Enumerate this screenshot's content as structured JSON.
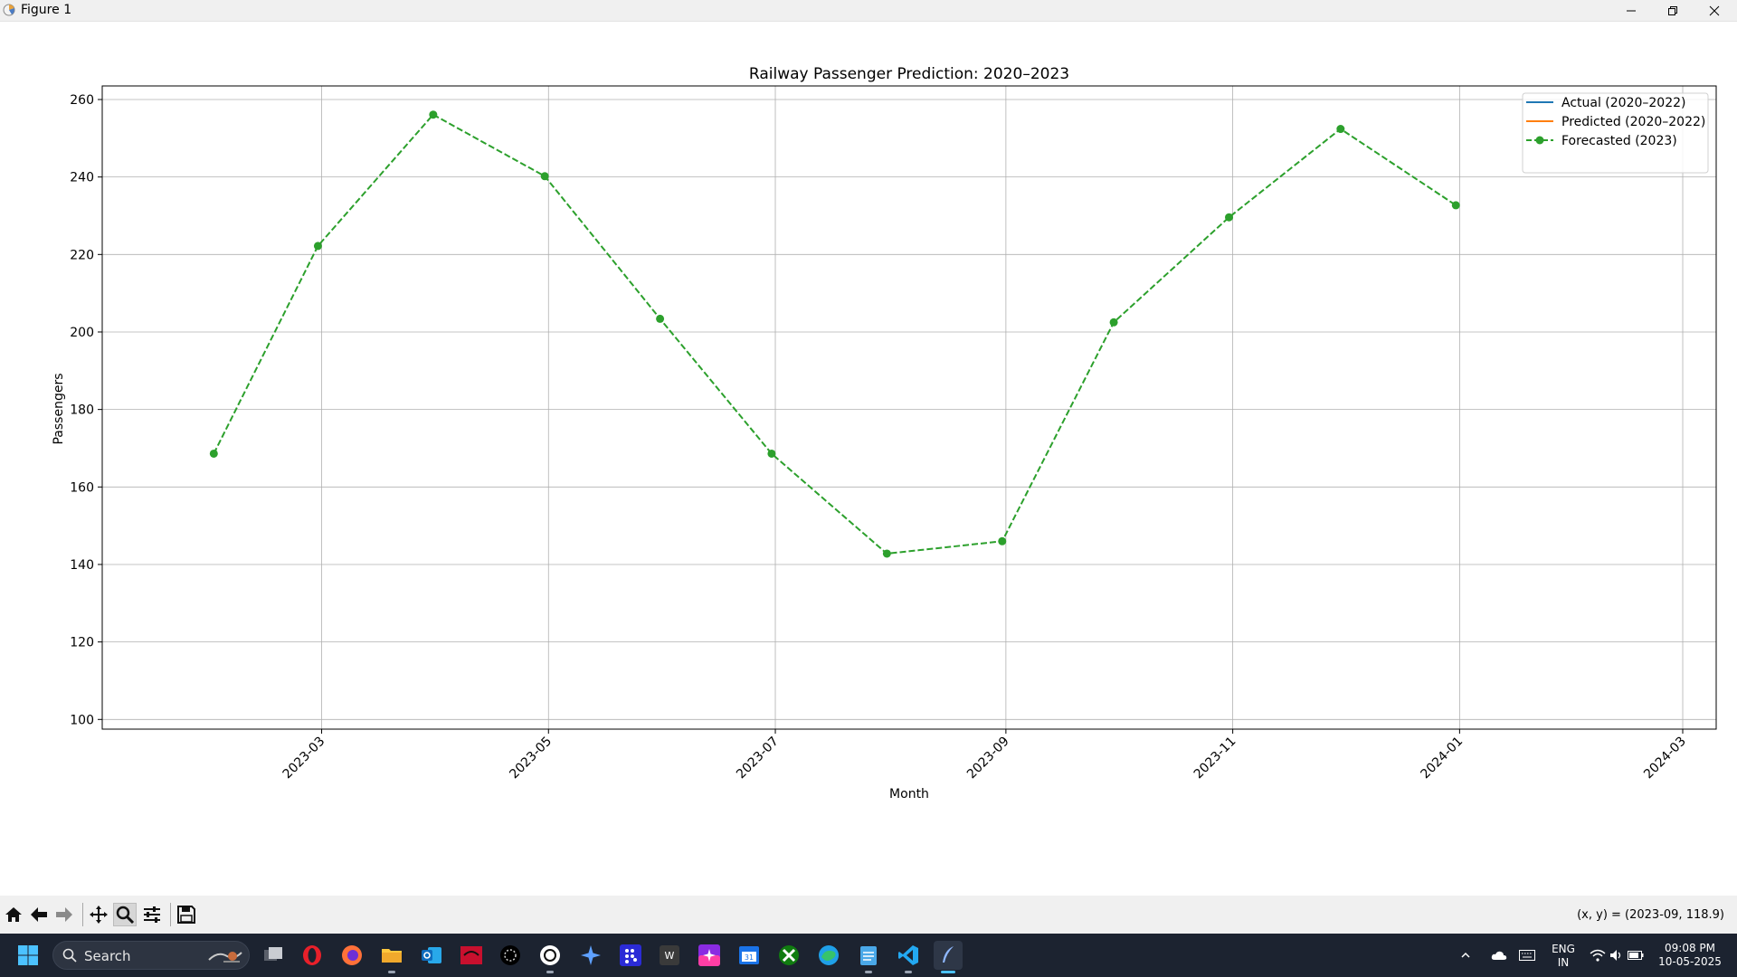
{
  "window": {
    "title": "Figure 1"
  },
  "chart_data": {
    "type": "line",
    "title": "Railway Passenger Prediction: 2020–2023",
    "xlabel": "Month",
    "ylabel": "Passengers",
    "ylim": [
      97.5,
      263.5
    ],
    "xlim": [
      "2023-01-01",
      "2024-03-10"
    ],
    "y_ticks": [
      100,
      120,
      140,
      160,
      180,
      200,
      220,
      240,
      260
    ],
    "x_ticks": [
      {
        "date": "2023-03-01",
        "label": "2023-03"
      },
      {
        "date": "2023-05-01",
        "label": "2023-05"
      },
      {
        "date": "2023-07-01",
        "label": "2023-07"
      },
      {
        "date": "2023-09-01",
        "label": "2023-09"
      },
      {
        "date": "2023-11-01",
        "label": "2023-11"
      },
      {
        "date": "2024-01-01",
        "label": "2024-01"
      },
      {
        "date": "2024-03-01",
        "label": "2024-03"
      }
    ],
    "grid": true,
    "legend_position": "upper right",
    "series": [
      {
        "name": "Actual (2020–2022)",
        "color": "#1f77b4",
        "style": "solid",
        "marker": "none",
        "x": [],
        "y": []
      },
      {
        "name": "Predicted (2020–2022)",
        "color": "#ff7f0e",
        "style": "solid",
        "marker": "none",
        "x": [],
        "y": []
      },
      {
        "name": "Forecasted (2023)",
        "color": "#2ca02c",
        "style": "dashed",
        "marker": "circle",
        "x": [
          "2023-01-31",
          "2023-02-28",
          "2023-03-31",
          "2023-04-30",
          "2023-05-31",
          "2023-06-30",
          "2023-07-31",
          "2023-08-31",
          "2023-09-30",
          "2023-10-31",
          "2023-11-30",
          "2023-12-31"
        ],
        "y": [
          168.6,
          222.2,
          256.1,
          240.2,
          203.4,
          168.6,
          142.8,
          146.0,
          202.5,
          229.6,
          252.4,
          232.7
        ]
      }
    ]
  },
  "toolbar": {
    "home": "home-icon",
    "back": "back-arrow-icon",
    "forward": "forward-arrow-icon",
    "pan": "pan-icon",
    "zoom": "zoom-icon",
    "configure": "configure-subplots-icon",
    "save": "save-icon",
    "coords": "(x, y) = (2023-09, 118.9)"
  },
  "taskbar": {
    "search_label": "Search",
    "apps": [
      "task-view-icon",
      "opera-icon",
      "firefox-icon",
      "file-explorer-icon",
      "outlook-icon",
      "app-red-icon",
      "perplexity-icon",
      "chatgpt-icon",
      "copilot-icon",
      "app-grid-icon",
      "word-app-icon",
      "app-star-icon",
      "calendar-icon",
      "xbox-icon",
      "edge-icon",
      "notepad-icon",
      "vscode-icon",
      "python-feather-icon"
    ],
    "lang_line1": "ENG",
    "lang_line2": "IN",
    "time": "09:08 PM",
    "date": "10-05-2025"
  }
}
